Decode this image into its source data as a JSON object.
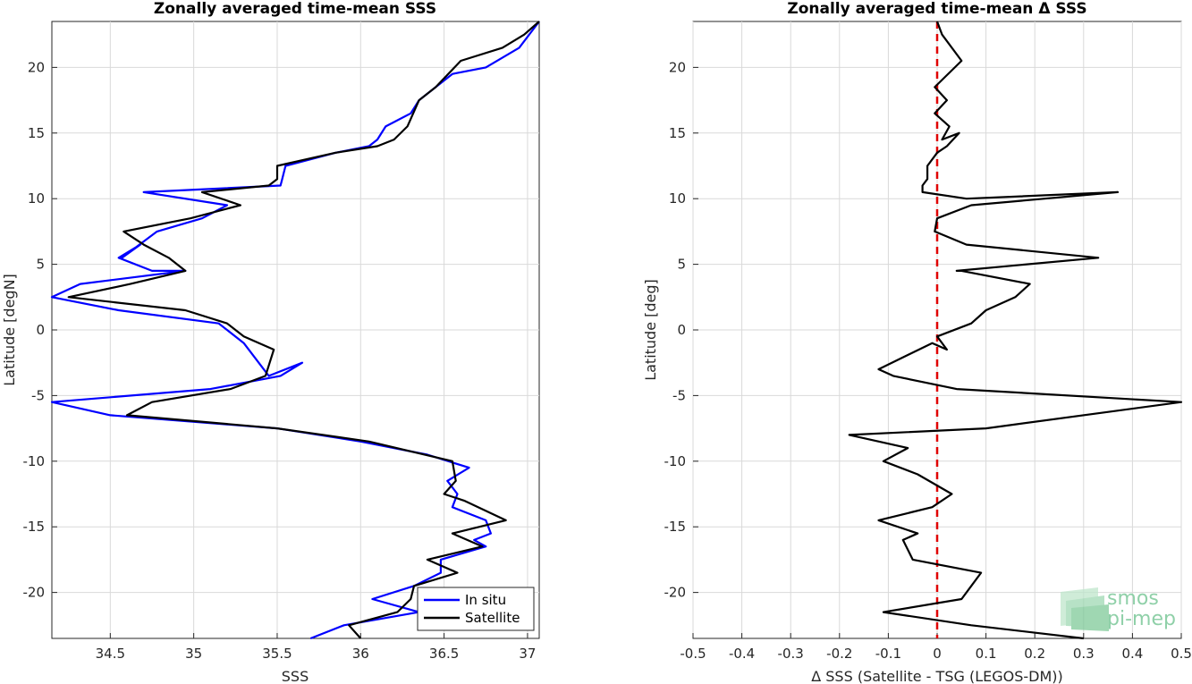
{
  "chart_data": [
    {
      "type": "line",
      "title": "Zonally averaged time-mean SSS",
      "xlabel": "SSS",
      "ylabel": "Latitude [degN]",
      "xlim": [
        34.15,
        37.07
      ],
      "ylim": [
        -23.5,
        23.5
      ],
      "xticks": [
        34.5,
        35,
        35.5,
        36,
        36.5,
        37
      ],
      "yticks": [
        -20,
        -15,
        -10,
        -5,
        0,
        5,
        10,
        15,
        20
      ],
      "grid": true,
      "legend_position": "bottom-right",
      "series": [
        {
          "name": "In situ",
          "color": "#0000ff",
          "x": [
            37.07,
            36.95,
            36.75,
            36.55,
            36.45,
            36.35,
            36.3,
            36.15,
            36.1,
            36.05,
            35.85,
            35.55,
            35.53,
            35.52,
            34.7,
            35.2,
            35.05,
            34.78,
            34.57,
            34.68,
            34.55,
            34.75,
            34.95,
            34.32,
            34.15,
            34.55,
            35.15,
            35.3,
            35.45,
            35.65,
            35.52,
            35.1,
            34.15,
            34.5,
            35.5,
            36.0,
            36.4,
            36.65,
            36.52,
            36.58,
            36.55,
            36.75,
            36.78,
            36.68,
            36.75,
            36.48,
            36.48,
            36.32,
            36.07,
            36.35,
            35.9,
            35.7
          ],
          "y": [
            23.5,
            21.5,
            20.0,
            19.5,
            18.5,
            17.5,
            16.5,
            15.5,
            14.5,
            14.0,
            13.5,
            12.5,
            11.5,
            11.0,
            10.5,
            9.5,
            8.5,
            7.5,
            5.5,
            6.5,
            5.5,
            4.5,
            4.5,
            3.5,
            2.5,
            1.5,
            0.5,
            -1.0,
            -3.5,
            -2.5,
            -3.5,
            -4.5,
            -5.5,
            -6.5,
            -7.5,
            -8.5,
            -9.5,
            -10.5,
            -11.5,
            -12.5,
            -13.5,
            -14.5,
            -15.5,
            -16.0,
            -16.5,
            -17.5,
            -18.5,
            -19.5,
            -20.5,
            -21.5,
            -22.5,
            -23.5
          ],
          "note": ""
        },
        {
          "name": "Satellite",
          "color": "#000000",
          "x": [
            37.07,
            36.98,
            36.85,
            36.6,
            36.45,
            36.35,
            36.28,
            36.2,
            36.1,
            35.85,
            35.5,
            35.5,
            35.45,
            35.05,
            35.28,
            34.98,
            34.58,
            34.7,
            34.85,
            34.95,
            34.62,
            34.25,
            34.95,
            35.2,
            35.3,
            35.48,
            35.43,
            35.22,
            34.75,
            34.6,
            35.5,
            36.05,
            36.55,
            36.57,
            36.5,
            36.62,
            36.87,
            36.55,
            36.73,
            36.4,
            36.58,
            36.32,
            36.3,
            36.22,
            35.93,
            36.0
          ],
          "y": [
            23.5,
            22.5,
            21.5,
            20.5,
            18.5,
            17.5,
            15.5,
            14.5,
            14.0,
            13.5,
            12.5,
            11.5,
            11.0,
            10.5,
            9.5,
            8.5,
            7.5,
            6.5,
            5.5,
            4.5,
            3.5,
            2.5,
            1.5,
            0.5,
            -0.5,
            -1.5,
            -3.5,
            -4.5,
            -5.5,
            -6.5,
            -7.5,
            -8.5,
            -10.0,
            -11.5,
            -12.5,
            -13.0,
            -14.5,
            -15.5,
            -16.5,
            -17.5,
            -18.5,
            -19.5,
            -20.5,
            -21.5,
            -22.5,
            -23.5
          ]
        }
      ]
    },
    {
      "type": "line",
      "title": "Zonally averaged time-mean Δ SSS",
      "xlabel": "Δ SSS (Satellite - TSG (LEGOS-DM))",
      "ylabel": "Latitude [deg]",
      "xlim": [
        -0.5,
        0.5
      ],
      "ylim": [
        -23.5,
        23.5
      ],
      "xticks": [
        -0.5,
        -0.4,
        -0.3,
        -0.2,
        -0.1,
        0,
        0.1,
        0.2,
        0.3,
        0.4,
        0.5
      ],
      "yticks": [
        -20,
        -15,
        -10,
        -5,
        0,
        5,
        10,
        15,
        20
      ],
      "grid": true,
      "reference_line": {
        "x": 0,
        "color": "#e00000",
        "style": "dashed"
      },
      "series": [
        {
          "color": "#000000",
          "x": [
            0.0,
            0.01,
            0.05,
            -0.005,
            0.02,
            -0.005,
            0.025,
            0.01,
            0.045,
            0.02,
            0.0,
            -0.02,
            -0.02,
            -0.03,
            -0.03,
            0.06,
            0.37,
            0.07,
            0.0,
            -0.005,
            0.06,
            0.33,
            0.04,
            0.05,
            0.19,
            0.16,
            0.1,
            0.07,
            0.0,
            0.02,
            -0.01,
            -0.12,
            -0.09,
            0.04,
            0.5,
            0.1,
            -0.18,
            -0.06,
            -0.11,
            -0.04,
            0.03,
            -0.01,
            -0.12,
            -0.04,
            -0.07,
            -0.05,
            0.09,
            0.07,
            0.05,
            -0.11,
            0.07,
            0.3
          ],
          "y": [
            23.5,
            22.5,
            20.5,
            18.5,
            17.5,
            16.5,
            15.5,
            14.5,
            15.0,
            14.0,
            13.5,
            12.5,
            11.5,
            11.0,
            10.5,
            10.0,
            10.5,
            9.5,
            8.5,
            7.5,
            6.5,
            5.5,
            4.5,
            4.5,
            3.5,
            2.5,
            1.5,
            0.5,
            -0.5,
            -1.5,
            -1.0,
            -3.0,
            -3.5,
            -4.5,
            -5.5,
            -7.5,
            -8.0,
            -9.0,
            -10.0,
            -11.0,
            -12.5,
            -13.5,
            -14.5,
            -15.5,
            -16.0,
            -17.5,
            -18.5,
            -19.5,
            -20.5,
            -21.5,
            -22.5,
            -23.5
          ]
        }
      ]
    }
  ],
  "legend": {
    "items": [
      "In situ",
      "Satellite"
    ]
  },
  "logo": {
    "line1": "smos",
    "line2": "pi-mep"
  }
}
